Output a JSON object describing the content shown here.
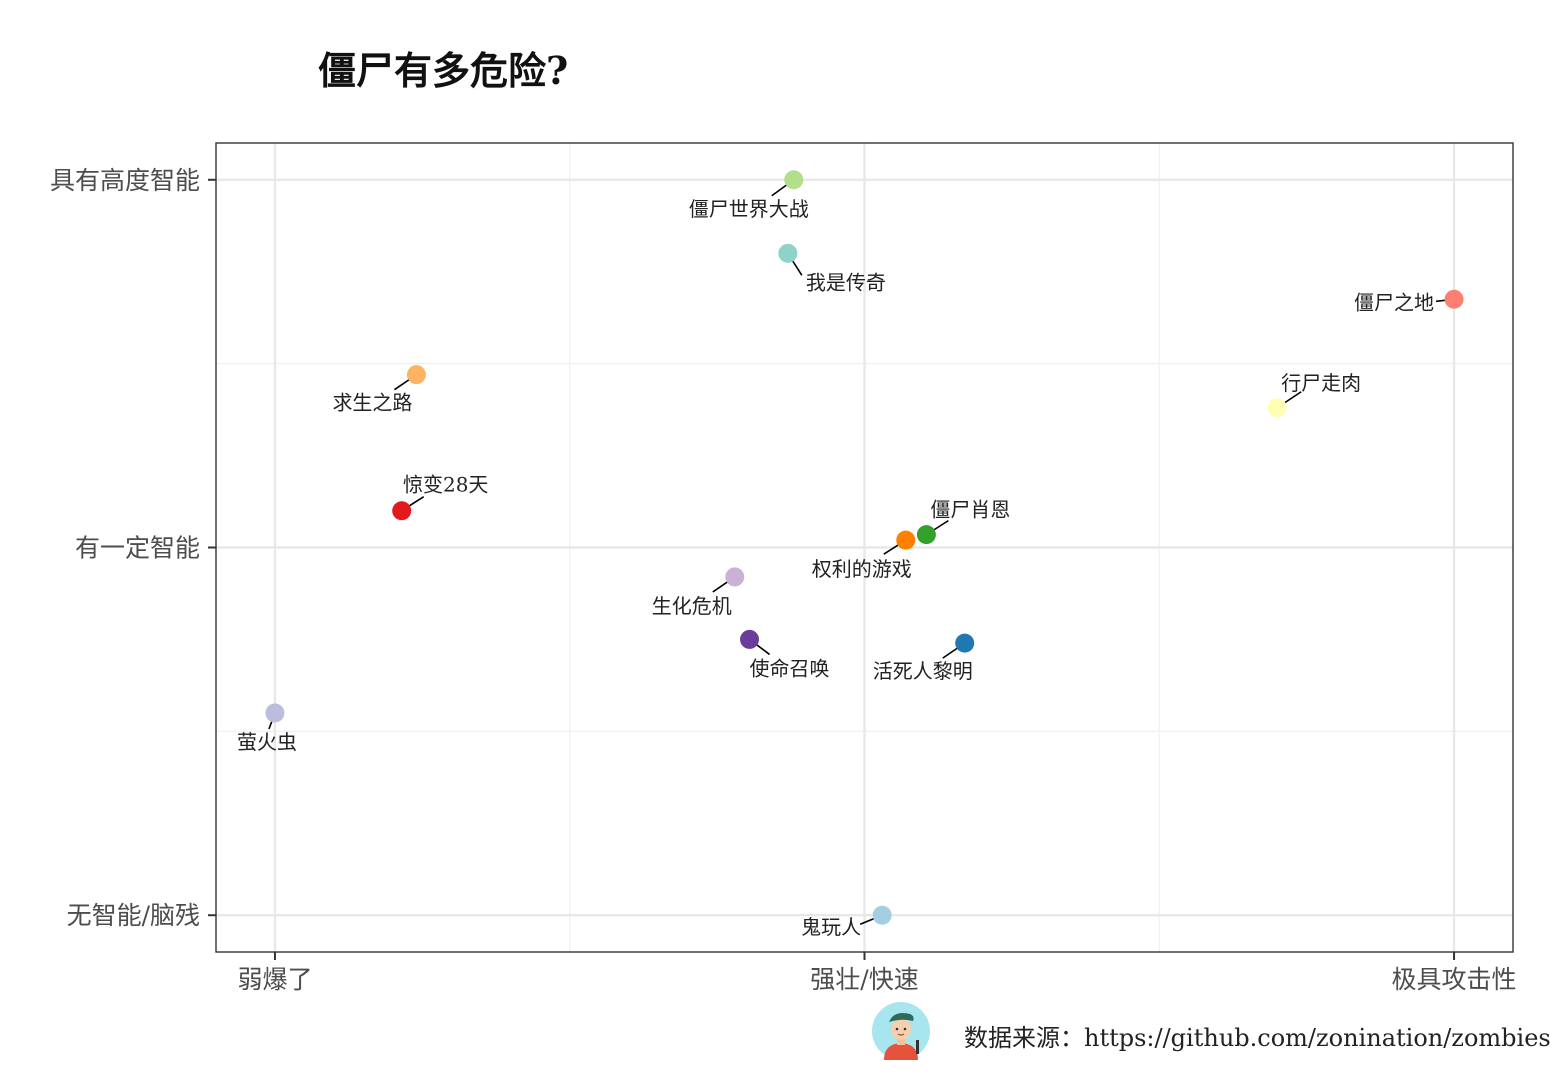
{
  "title": "僵尸有多危险?",
  "source_text": "数据来源：https://github.com/zonination/zombies",
  "chart_data": {
    "type": "scatter",
    "title": "僵尸有多危险?",
    "xlabel": "",
    "ylabel": "",
    "xlim": [
      0.8,
      5.2
    ],
    "ylim": [
      0.9,
      3.1
    ],
    "x_ticks": [
      {
        "value": 1,
        "label": "弱爆了"
      },
      {
        "value": 3,
        "label": "强壮/快速"
      },
      {
        "value": 5,
        "label": "极具攻击性"
      }
    ],
    "y_ticks": [
      {
        "value": 1,
        "label": "无智能/脑残"
      },
      {
        "value": 2,
        "label": "有一定智能"
      },
      {
        "value": 3,
        "label": "具有高度智能"
      }
    ],
    "grid": true,
    "legend": "none",
    "points": [
      {
        "name": "僵尸世界大战",
        "x": 2.76,
        "y": 3.0,
        "color": "#b2df8a"
      },
      {
        "name": "我是传奇",
        "x": 2.74,
        "y": 2.8,
        "color": "#8dd3c7"
      },
      {
        "name": "僵尸之地",
        "x": 5.0,
        "y": 2.675,
        "color": "#fb8072"
      },
      {
        "name": "求生之路",
        "x": 1.48,
        "y": 2.47,
        "color": "#fdb462"
      },
      {
        "name": "行尸走肉",
        "x": 4.4,
        "y": 2.38,
        "color": "#ffffb3"
      },
      {
        "name": "惊变28天",
        "x": 1.43,
        "y": 2.1,
        "color": "#e31a1c"
      },
      {
        "name": "僵尸肖恩",
        "x": 3.21,
        "y": 2.035,
        "color": "#33a02c"
      },
      {
        "name": "权利的游戏",
        "x": 3.14,
        "y": 2.02,
        "color": "#ff7f00"
      },
      {
        "name": "生化危机",
        "x": 2.56,
        "y": 1.92,
        "color": "#cab2d6"
      },
      {
        "name": "使命召唤",
        "x": 2.61,
        "y": 1.75,
        "color": "#6a3d9a"
      },
      {
        "name": "活死人黎明",
        "x": 3.34,
        "y": 1.74,
        "color": "#1f78b4"
      },
      {
        "name": "萤火虫",
        "x": 1.0,
        "y": 1.55,
        "color": "#bcbddc"
      },
      {
        "name": "鬼玩人",
        "x": 3.06,
        "y": 1.0,
        "color": "#a6cee3"
      }
    ]
  }
}
